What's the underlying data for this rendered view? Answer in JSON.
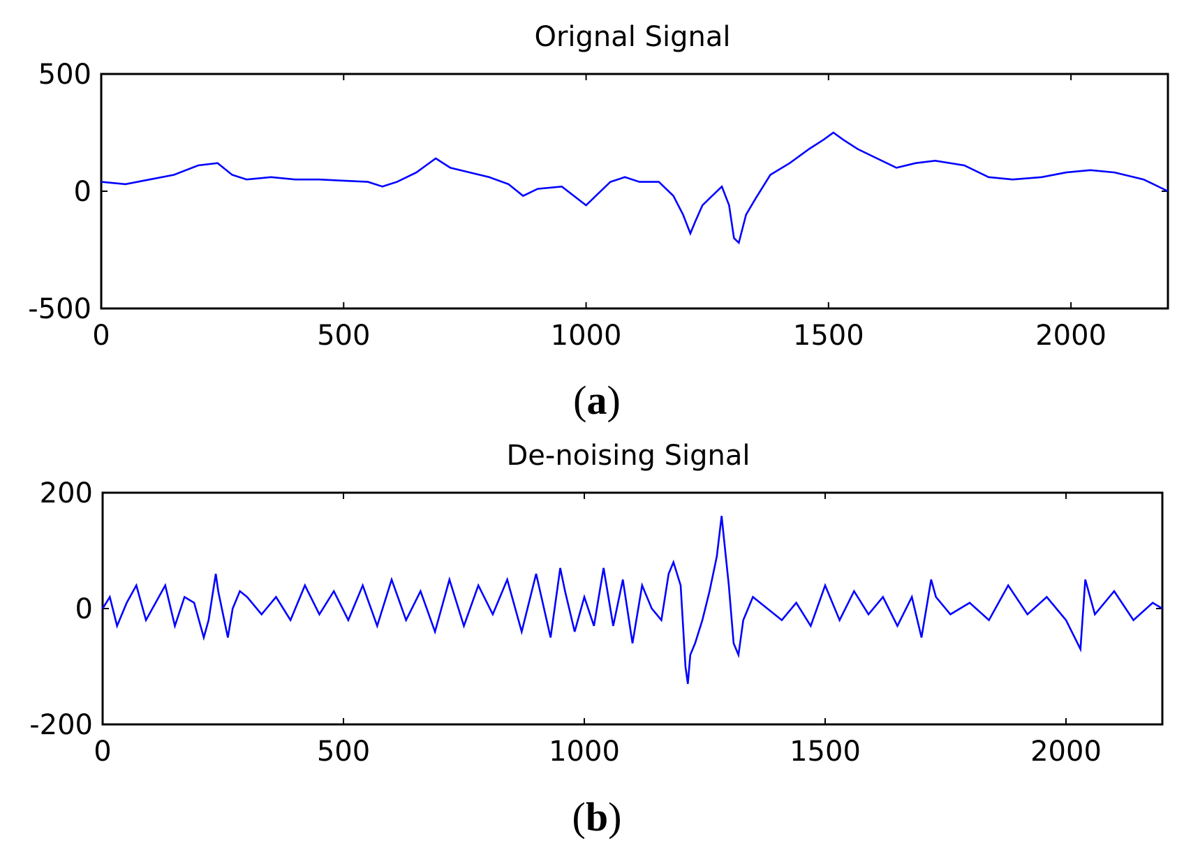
{
  "colors": {
    "line": "#0000FF",
    "axes": "#000000",
    "background": "#FFFFFF"
  },
  "chart_data": [
    {
      "type": "line",
      "title": "Orignal Signal",
      "panel_label": {
        "open": "(",
        "letter": "a",
        "close": ")"
      },
      "xlabel": "",
      "ylabel": "",
      "xlim": [
        0,
        2200
      ],
      "ylim": [
        -500,
        500
      ],
      "xticks": [
        "0",
        "500",
        "1000",
        "1500",
        "2000"
      ],
      "xtick_values": [
        0,
        500,
        1000,
        1500,
        2000
      ],
      "yticks": [
        "500",
        "0",
        "-500"
      ],
      "ytick_values": [
        500,
        0,
        -500
      ],
      "grid": false,
      "series": [
        {
          "x": [
            0,
            50,
            100,
            150,
            200,
            240,
            270,
            300,
            350,
            400,
            450,
            500,
            550,
            580,
            610,
            650,
            670,
            690,
            720,
            760,
            800,
            840,
            870,
            900,
            950,
            1000,
            1050,
            1080,
            1110,
            1150,
            1180,
            1200,
            1215,
            1225,
            1240,
            1260,
            1280,
            1295,
            1305,
            1315,
            1330,
            1350,
            1380,
            1420,
            1460,
            1490,
            1510,
            1530,
            1560,
            1600,
            1640,
            1680,
            1720,
            1780,
            1830,
            1880,
            1940,
            1990,
            2040,
            2090,
            2150,
            2200
          ],
          "y": [
            40,
            30,
            50,
            70,
            110,
            120,
            70,
            50,
            60,
            50,
            50,
            45,
            40,
            20,
            40,
            80,
            110,
            140,
            100,
            80,
            60,
            30,
            -20,
            10,
            20,
            -60,
            40,
            60,
            40,
            40,
            -20,
            -100,
            -180,
            -130,
            -60,
            -20,
            20,
            -60,
            -200,
            -220,
            -100,
            -30,
            70,
            120,
            180,
            220,
            250,
            220,
            180,
            140,
            100,
            120,
            130,
            110,
            60,
            50,
            60,
            80,
            90,
            80,
            50,
            0
          ]
        }
      ]
    },
    {
      "type": "line",
      "title": "De-noising Signal",
      "panel_label": {
        "open": "(",
        "letter": "b",
        "close": ")"
      },
      "xlabel": "",
      "ylabel": "",
      "xlim": [
        0,
        2200
      ],
      "ylim": [
        -200,
        200
      ],
      "xticks": [
        "0",
        "500",
        "1000",
        "1500",
        "2000"
      ],
      "xtick_values": [
        0,
        500,
        1000,
        1500,
        2000
      ],
      "yticks": [
        "200",
        "0",
        "-200"
      ],
      "ytick_values": [
        200,
        0,
        -200
      ],
      "grid": false,
      "series": [
        {
          "x": [
            0,
            15,
            30,
            50,
            70,
            90,
            110,
            130,
            150,
            170,
            190,
            210,
            220,
            235,
            240,
            250,
            260,
            270,
            285,
            300,
            330,
            360,
            390,
            420,
            450,
            480,
            510,
            540,
            570,
            600,
            630,
            660,
            690,
            720,
            750,
            780,
            810,
            840,
            870,
            900,
            930,
            950,
            960,
            980,
            1000,
            1020,
            1040,
            1050,
            1060,
            1080,
            1100,
            1120,
            1140,
            1160,
            1175,
            1185,
            1200,
            1210,
            1215,
            1220,
            1230,
            1245,
            1260,
            1275,
            1285,
            1290,
            1300,
            1310,
            1320,
            1330,
            1350,
            1380,
            1410,
            1440,
            1470,
            1500,
            1530,
            1560,
            1590,
            1620,
            1650,
            1680,
            1700,
            1720,
            1730,
            1760,
            1800,
            1840,
            1880,
            1920,
            1960,
            2000,
            2030,
            2040,
            2060,
            2100,
            2140,
            2180,
            2200
          ],
          "y": [
            0,
            20,
            -30,
            10,
            40,
            -20,
            10,
            40,
            -30,
            20,
            10,
            -50,
            -20,
            60,
            30,
            -10,
            -50,
            0,
            30,
            20,
            -10,
            20,
            -20,
            40,
            -10,
            30,
            -20,
            40,
            -30,
            50,
            -20,
            30,
            -40,
            50,
            -30,
            40,
            -10,
            50,
            -40,
            60,
            -50,
            70,
            30,
            -40,
            20,
            -30,
            70,
            20,
            -30,
            50,
            -60,
            40,
            0,
            -20,
            60,
            80,
            40,
            -100,
            -130,
            -80,
            -60,
            -20,
            30,
            90,
            160,
            120,
            40,
            -60,
            -80,
            -20,
            20,
            0,
            -20,
            10,
            -30,
            40,
            -20,
            30,
            -10,
            20,
            -30,
            20,
            -50,
            50,
            20,
            -10,
            10,
            -20,
            40,
            -10,
            20,
            -20,
            -70,
            50,
            -10,
            30,
            -20,
            10,
            0
          ]
        }
      ]
    }
  ]
}
